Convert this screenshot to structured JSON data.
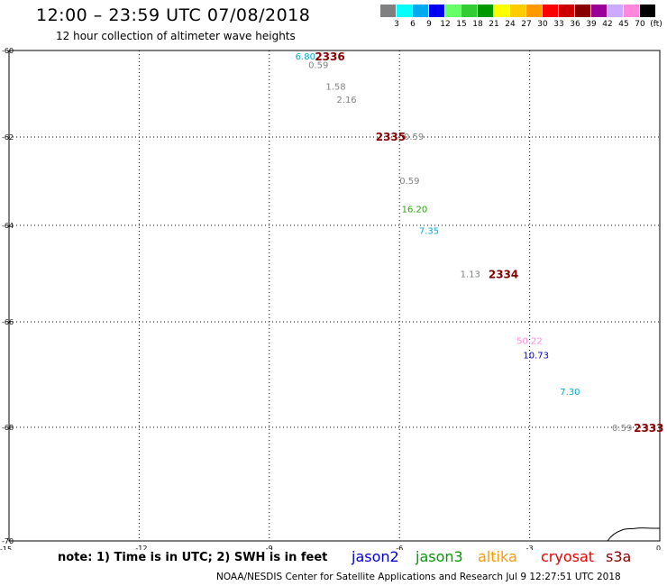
{
  "header": {
    "title": "12:00 – 23:59 UTC 07/08/2018",
    "subtitle": "12 hour collection of altimeter wave heights"
  },
  "scale": {
    "unit": "(ft)",
    "labels": [
      "3",
      "6",
      "9",
      "12",
      "15",
      "18",
      "21",
      "24",
      "27",
      "30",
      "33",
      "36",
      "39",
      "42",
      "45",
      "70"
    ],
    "colors": [
      "#808080",
      "#00ffff",
      "#00aaee",
      "#0000ee",
      "#66ff66",
      "#33cc33",
      "#009900",
      "#ffff00",
      "#ffcc00",
      "#ff9900",
      "#ff0000",
      "#cc0000",
      "#880000",
      "#990099",
      "#ccaaff",
      "#ff88dd",
      "#000000"
    ]
  },
  "axes": {
    "y_ticks": [
      "-60",
      "-62",
      "-64",
      "-66",
      "-68",
      "-70"
    ],
    "x_ticks": [
      "-15",
      "-12",
      "-9",
      "-6",
      "-3",
      "0"
    ]
  },
  "map": {
    "measurements": [
      {
        "text": "6.80",
        "color": "#00aacc",
        "lon": -8.4,
        "lat": -60.12
      },
      {
        "text": "0.59",
        "color": "#808080",
        "lon": -8.1,
        "lat": -60.32
      },
      {
        "text": "1.58",
        "color": "#808080",
        "lon": -7.7,
        "lat": -60.82
      },
      {
        "text": "2.16",
        "color": "#808080",
        "lon": -7.45,
        "lat": -61.12
      },
      {
        "text": "0.59",
        "color": "#808080",
        "lon": -5.9,
        "lat": -61.98
      },
      {
        "text": "0.59",
        "color": "#808080",
        "lon": -6.0,
        "lat": -62.98
      },
      {
        "text": "16.20",
        "color": "#22aa00",
        "lon": -5.95,
        "lat": -63.62
      },
      {
        "text": "7.35",
        "color": "#00aacc",
        "lon": -5.55,
        "lat": -64.1
      },
      {
        "text": "1.13",
        "color": "#808080",
        "lon": -4.6,
        "lat": -65.0
      },
      {
        "text": "50.22",
        "color": "#ff88dd",
        "lon": -3.3,
        "lat": -66.35
      },
      {
        "text": "10.73",
        "color": "#0000cc",
        "lon": -3.15,
        "lat": -66.62
      },
      {
        "text": "7.30",
        "color": "#00aacc",
        "lon": -2.3,
        "lat": -67.32
      },
      {
        "text": "0.59",
        "color": "#808080",
        "lon": -1.1,
        "lat": -68.0
      }
    ],
    "times": [
      {
        "text": "2336",
        "color": "#880000",
        "lon": -7.95,
        "lat": -60.13
      },
      {
        "text": "2335",
        "color": "#880000",
        "lon": -6.55,
        "lat": -61.98
      },
      {
        "text": "2334",
        "color": "#880000",
        "lon": -3.95,
        "lat": -65.0
      },
      {
        "text": "2333",
        "color": "#880000",
        "lon": -0.6,
        "lat": -68.0
      }
    ]
  },
  "footer": {
    "note": "note:  1) Time is in UTC;  2) SWH is in feet",
    "legend": [
      {
        "name": "jason2",
        "color": "#0000cc"
      },
      {
        "name": "jason3",
        "color": "#009900"
      },
      {
        "name": "altika",
        "color": "#ff9900"
      },
      {
        "name": "cryosat",
        "color": "#ee0000"
      },
      {
        "name": "s3a",
        "color": "#880000"
      }
    ],
    "credit": "NOAA/NESDIS Center for Satellite Applications and Research    Jul  9 12:27:51 UTC 2018"
  }
}
